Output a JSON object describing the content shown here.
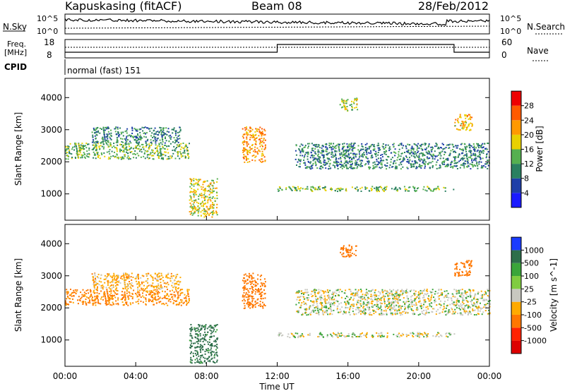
{
  "header": {
    "station": "Kapuskasing (fitACF)",
    "beam": "Beam 08",
    "date": "28/Feb/2012"
  },
  "noise_panel": {
    "left_label": "N.Sky",
    "right_label": "N.Search",
    "left_ticks": [
      "10^5",
      "10^0"
    ],
    "right_ticks": [
      "10^5",
      "10^0"
    ]
  },
  "freq_panel": {
    "left_label_line1": "Freq.",
    "left_label_line2": "[MHz]",
    "left_ticks": [
      "18",
      "8"
    ],
    "right_label": "Nave",
    "right_ticks": [
      "60",
      "0"
    ]
  },
  "cpid": {
    "label": "CPID",
    "value": "normal (fast) 151"
  },
  "power_panel": {
    "ylabel": "Slant Range [km]",
    "y_ticks": [
      "1000",
      "2000",
      "3000",
      "4000"
    ],
    "colorbar_label": "Power [dB]",
    "colorbar_ticks": [
      "4",
      "8",
      "12",
      "16",
      "20",
      "24",
      "28"
    ],
    "colors": [
      "#1a1aff",
      "#1f3fa8",
      "#2a8060",
      "#55b050",
      "#e8d000",
      "#ff9900",
      "#ff5a00",
      "#ee0000"
    ]
  },
  "velocity_panel": {
    "ylabel": "Slant Range [km]",
    "y_ticks": [
      "1000",
      "2000",
      "3000",
      "4000"
    ],
    "colorbar_label": "Velocity [m s^-1]",
    "colorbar_ticks": [
      "1000",
      "500",
      "100",
      "25",
      "-25",
      "-100",
      "-500",
      "-1000"
    ],
    "colors": [
      "#1a3cff",
      "#2d6e4a",
      "#3aa53a",
      "#80cc40",
      "#c8c8c0",
      "#ffaa00",
      "#ff7700",
      "#ff2200",
      "#dd0000"
    ],
    "ground_scatter_color": "#c8c8c0"
  },
  "x_axis": {
    "label": "Time UT",
    "ticks": [
      "00:00",
      "04:00",
      "08:00",
      "12:00",
      "16:00",
      "20:00",
      "00:00"
    ]
  },
  "chart_data": {
    "type": "heatmap",
    "xlabel": "Time UT",
    "ylabel": "Slant Range [km]",
    "xlim": [
      0,
      24
    ],
    "ylim": [
      180,
      4600
    ],
    "bands": [
      {
        "name": "",
        "t_start": 0.0,
        "t_end": 7.0,
        "r_start": 2100,
        "r_end": 2600,
        "power": 14,
        "velocity": -120
      },
      {
        "name": "",
        "t_start": 1.5,
        "t_end": 6.5,
        "r_start": 2600,
        "r_end": 3100,
        "power": 10,
        "velocity": -60
      },
      {
        "name": "",
        "t_start": 7.0,
        "t_end": 8.6,
        "r_start": 300,
        "r_end": 1500,
        "power": 18,
        "velocity": 150
      },
      {
        "name": "",
        "t_start": 10.0,
        "t_end": 11.3,
        "r_start": 2000,
        "r_end": 3100,
        "power": 22,
        "velocity": -200
      },
      {
        "name": "",
        "t_start": 12.0,
        "t_end": 22.0,
        "r_start": 1100,
        "r_end": 1250,
        "power": 14,
        "velocity": 0
      },
      {
        "name": "",
        "t_start": 13.0,
        "t_end": 24.0,
        "r_start": 1800,
        "r_end": 2600,
        "power": 10,
        "velocity": 0
      },
      {
        "name": "",
        "t_start": 15.5,
        "t_end": 16.5,
        "r_start": 3600,
        "r_end": 4000,
        "power": 16,
        "velocity": -300
      },
      {
        "name": "",
        "t_start": 22.0,
        "t_end": 23.0,
        "r_start": 3000,
        "r_end": 3500,
        "power": 20,
        "velocity": -400
      }
    ]
  }
}
